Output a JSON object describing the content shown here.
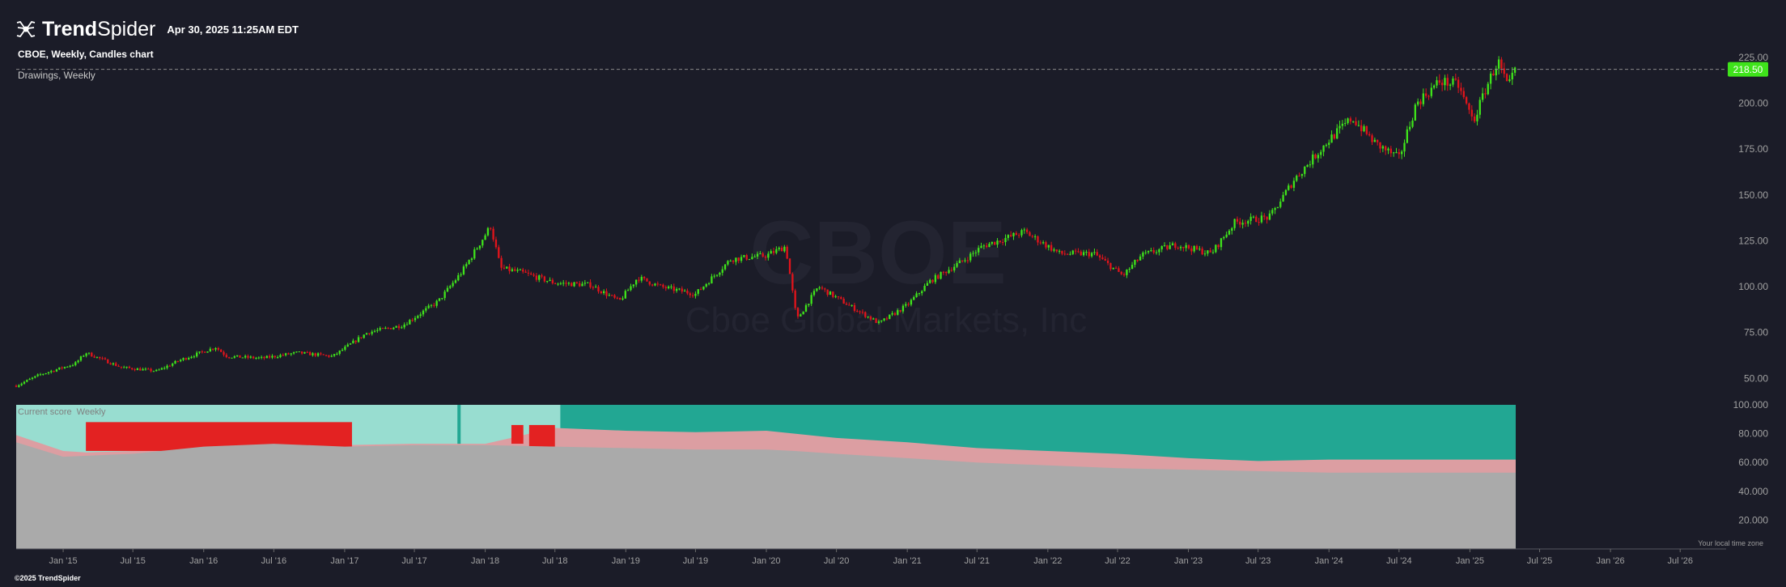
{
  "header": {
    "logo_bold": "Trend",
    "logo_light": "Spider",
    "timestamp": "Apr 30, 2025 11:25AM EDT"
  },
  "chart_title": "CBOE, Weekly, Candles chart",
  "drawings_label": "Drawings, Weekly",
  "lower_label": {
    "name": "Current score",
    "timeframe": "Weekly"
  },
  "watermark": {
    "symbol": "CBOE",
    "company": "Cboe Global Markets, Inc"
  },
  "footer": "©2025 TrendSpider",
  "tz_note": "Your local time zone",
  "colors": {
    "up_candle": "#3fe31b",
    "down_candle": "#e1141b",
    "price_tag": "#3fe31b",
    "score_teal": "#22a793",
    "score_light_teal": "#98ddd0",
    "score_red": "#e32222",
    "score_pink": "#dc9ea2",
    "score_gray": "#aaaaaa"
  },
  "chart_data": [
    {
      "type": "line",
      "subtype": "candlestick",
      "title": "CBOE, Weekly, Candles chart",
      "ylim": [
        40,
        232
      ],
      "y_ticks": [
        50,
        75,
        100,
        125,
        150,
        175,
        200,
        225
      ],
      "y_tick_labels": [
        "50.00",
        "75.00",
        "100.00",
        "125.00",
        "150.00",
        "175.00",
        "200.00",
        "225.00"
      ],
      "x_tick_labels": [
        "Jan '15",
        "Jul '15",
        "Jan '16",
        "Jul '16",
        "Jan '17",
        "Jul '17",
        "Jan '18",
        "Jul '18",
        "Jan '19",
        "Jul '19",
        "Jan '20",
        "Jul '20",
        "Jan '21",
        "Jul '21",
        "Jan '22",
        "Jul '22",
        "Jan '23",
        "Jul '23",
        "Jan '24",
        "Jul '24",
        "Jan '25",
        "Jul '25",
        "Jan '26",
        "Jul '26"
      ],
      "last_price": 218.5,
      "last_price_label": "218.50",
      "x_range": [
        "2014-09-01",
        "2026-10-01"
      ],
      "data_end": "2025-04-30",
      "price_path": [
        [
          "2014-09-01",
          46
        ],
        [
          "2014-11-01",
          52
        ],
        [
          "2015-02-01",
          58
        ],
        [
          "2015-03-01",
          64
        ],
        [
          "2015-06-01",
          56
        ],
        [
          "2015-09-01",
          54
        ],
        [
          "2015-11-01",
          60
        ],
        [
          "2016-02-01",
          67
        ],
        [
          "2016-03-01",
          62
        ],
        [
          "2016-06-01",
          61
        ],
        [
          "2016-09-01",
          64
        ],
        [
          "2016-12-01",
          62
        ],
        [
          "2017-03-01",
          75
        ],
        [
          "2017-06-01",
          79
        ],
        [
          "2017-09-01",
          92
        ],
        [
          "2017-11-01",
          108
        ],
        [
          "2018-01-15",
          133
        ],
        [
          "2018-02-10",
          110
        ],
        [
          "2018-04-01",
          108
        ],
        [
          "2018-07-01",
          102
        ],
        [
          "2018-10-01",
          101
        ],
        [
          "2018-12-15",
          92
        ],
        [
          "2019-02-01",
          105
        ],
        [
          "2019-04-01",
          100
        ],
        [
          "2019-07-01",
          96
        ],
        [
          "2019-10-01",
          115
        ],
        [
          "2020-01-01",
          117
        ],
        [
          "2020-02-20",
          122
        ],
        [
          "2020-03-20",
          82
        ],
        [
          "2020-05-15",
          100
        ],
        [
          "2020-08-01",
          90
        ],
        [
          "2020-10-20",
          80
        ],
        [
          "2021-01-01",
          90
        ],
        [
          "2021-03-01",
          103
        ],
        [
          "2021-06-01",
          115
        ],
        [
          "2021-07-15",
          122
        ],
        [
          "2021-11-01",
          130
        ],
        [
          "2022-02-01",
          118
        ],
        [
          "2022-05-01",
          118
        ],
        [
          "2022-07-15",
          106
        ],
        [
          "2022-09-01",
          117
        ],
        [
          "2022-12-01",
          123
        ],
        [
          "2023-03-01",
          118
        ],
        [
          "2023-05-01",
          135
        ],
        [
          "2023-08-01",
          138
        ],
        [
          "2023-10-01",
          158
        ],
        [
          "2024-01-01",
          180
        ],
        [
          "2024-03-01",
          192
        ],
        [
          "2024-05-01",
          178
        ],
        [
          "2024-07-01",
          170
        ],
        [
          "2024-08-15",
          200
        ],
        [
          "2024-10-15",
          212
        ],
        [
          "2024-12-01",
          210
        ],
        [
          "2025-01-10",
          190
        ],
        [
          "2025-02-15",
          210
        ],
        [
          "2025-03-15",
          223
        ],
        [
          "2025-04-10",
          208
        ],
        [
          "2025-04-30",
          218.5
        ]
      ]
    },
    {
      "type": "area",
      "title": "Current score",
      "ylim": [
        0,
        100
      ],
      "y_ticks": [
        20,
        40,
        60,
        80,
        100
      ],
      "y_tick_labels": [
        "20.000",
        "40.000",
        "60.000",
        "80.000",
        "100.000"
      ],
      "series": [
        {
          "name": "",
          "points": [
            [
              "2014-09-01",
              74
            ],
            [
              "2015-01-01",
              64
            ],
            [
              "2015-07-01",
              66
            ],
            [
              "2016-01-01",
              71
            ],
            [
              "2016-07-01",
              73
            ],
            [
              "2017-01-01",
              71
            ],
            [
              "2017-07-01",
              72
            ],
            [
              "2018-01-01",
              72
            ],
            [
              "2018-07-01",
              71
            ],
            [
              "2019-01-01",
              70
            ],
            [
              "2019-07-01",
              69
            ],
            [
              "2020-01-01",
              69
            ],
            [
              "2020-03-15",
              68
            ],
            [
              "2020-07-01",
              66
            ],
            [
              "2021-01-01",
              63
            ],
            [
              "2021-07-01",
              60
            ],
            [
              "2022-01-01",
              58
            ],
            [
              "2022-07-01",
              56
            ],
            [
              "2023-01-01",
              55
            ],
            [
              "2023-07-01",
              54
            ],
            [
              "2024-01-01",
              53
            ],
            [
              "2024-07-01",
              53
            ],
            [
              "2025-01-01",
              53
            ],
            [
              "2025-04-30",
              53
            ]
          ]
        },
        {
          "name": "",
          "points": [
            [
              "2014-09-01",
              79
            ],
            [
              "2015-01-01",
              68
            ],
            [
              "2015-03-01",
              67
            ],
            [
              "2015-07-01",
              68
            ],
            [
              "2016-01-01",
              73
            ],
            [
              "2016-07-01",
              75
            ],
            [
              "2017-01-01",
              72
            ],
            [
              "2017-07-01",
              73
            ],
            [
              "2018-01-01",
              73
            ],
            [
              "2018-07-01",
              84
            ],
            [
              "2019-01-01",
              82
            ],
            [
              "2019-07-01",
              81
            ],
            [
              "2020-01-01",
              82
            ],
            [
              "2020-03-15",
              80
            ],
            [
              "2020-07-01",
              77
            ],
            [
              "2021-01-01",
              74
            ],
            [
              "2021-07-01",
              70
            ],
            [
              "2022-01-01",
              68
            ],
            [
              "2022-07-01",
              66
            ],
            [
              "2023-01-01",
              63
            ],
            [
              "2023-07-01",
              61
            ],
            [
              "2024-01-01",
              62
            ],
            [
              "2024-07-01",
              62
            ],
            [
              "2025-01-01",
              62
            ],
            [
              "2025-04-30",
              62
            ]
          ]
        },
        {
          "name": "",
          "points": [
            [
              "2014-09-01",
              100
            ],
            [
              "2015-01-01",
              100
            ],
            [
              "2018-07-01",
              100
            ],
            [
              "2025-04-30",
              100
            ]
          ]
        }
      ],
      "red_zones": [
        {
          "start": "2015-03-01",
          "end": "2017-01-20",
          "top": 88,
          "bottom": 68
        },
        {
          "start": "2018-03-10",
          "end": "2018-04-10",
          "top": 86,
          "bottom": 73
        },
        {
          "start": "2018-04-25",
          "end": "2018-07-01",
          "top": 86,
          "bottom": 71
        }
      ],
      "light_teal_zone": {
        "start": "2015-02-01",
        "end": "2018-07-15"
      },
      "teal_marker": "2017-10-25"
    }
  ]
}
